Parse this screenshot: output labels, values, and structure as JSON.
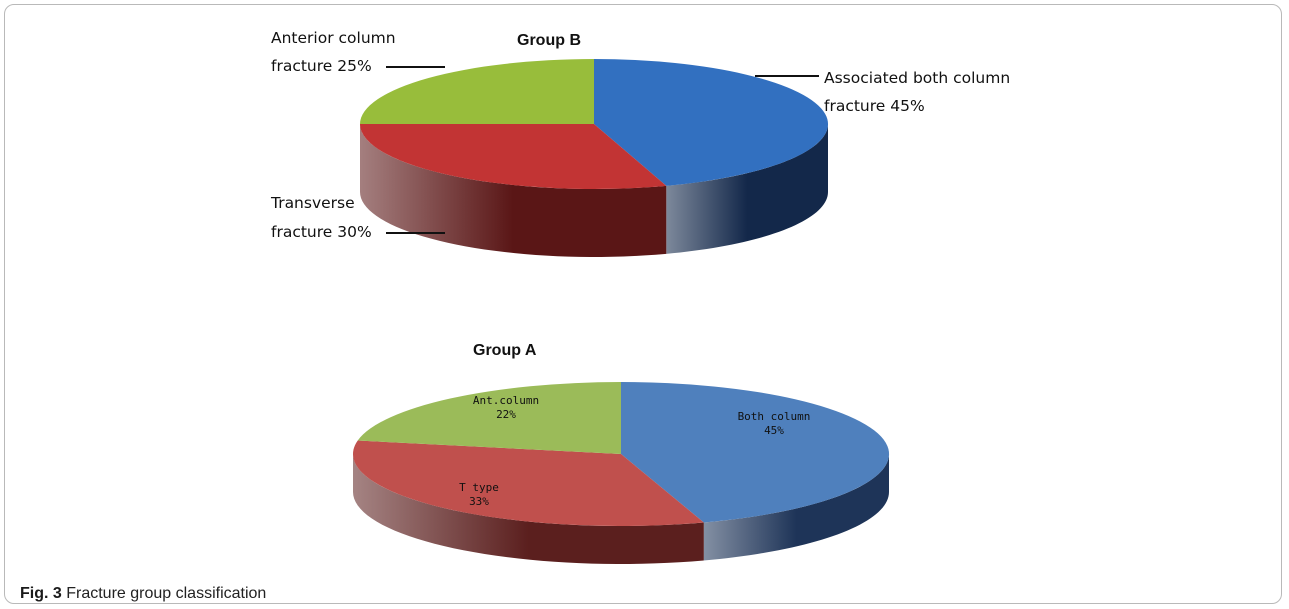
{
  "chart_data": [
    {
      "type": "pie",
      "title": "Group B",
      "categories": [
        "Associated both column fracture",
        "Transverse fracture",
        "Anterior column fracture"
      ],
      "values": [
        45,
        30,
        25
      ],
      "units": "%",
      "colors": {
        "top": [
          "#3270c0",
          "#c23434",
          "#98bd3b"
        ],
        "side": [
          "#13284a",
          "#5a1616",
          "#3f5516"
        ]
      },
      "labels": [
        {
          "lines": [
            "Associated both column",
            "fracture 45%"
          ]
        },
        {
          "lines": [
            "Transverse",
            "fracture 30%"
          ]
        },
        {
          "lines": [
            "Anterior column",
            "fracture 25%"
          ]
        }
      ],
      "legend": "none"
    },
    {
      "type": "pie",
      "title": "Group A",
      "categories": [
        "Both column",
        "T type",
        "Ant.column"
      ],
      "values": [
        45,
        33,
        22
      ],
      "units": "%",
      "colors": {
        "top": [
          "#4f80bd",
          "#c0504d",
          "#9bbb59"
        ],
        "side": [
          "#1e3458",
          "#5b1f1e",
          "#445d1e"
        ]
      },
      "labels": [
        {
          "lines": [
            "Both column",
            "45%"
          ]
        },
        {
          "lines": [
            "T type",
            "33%"
          ]
        },
        {
          "lines": [
            "Ant.column",
            "22%"
          ]
        }
      ],
      "legend": "none"
    }
  ],
  "caption": {
    "label": "Fig. 3",
    "text": "Fracture group classification"
  }
}
